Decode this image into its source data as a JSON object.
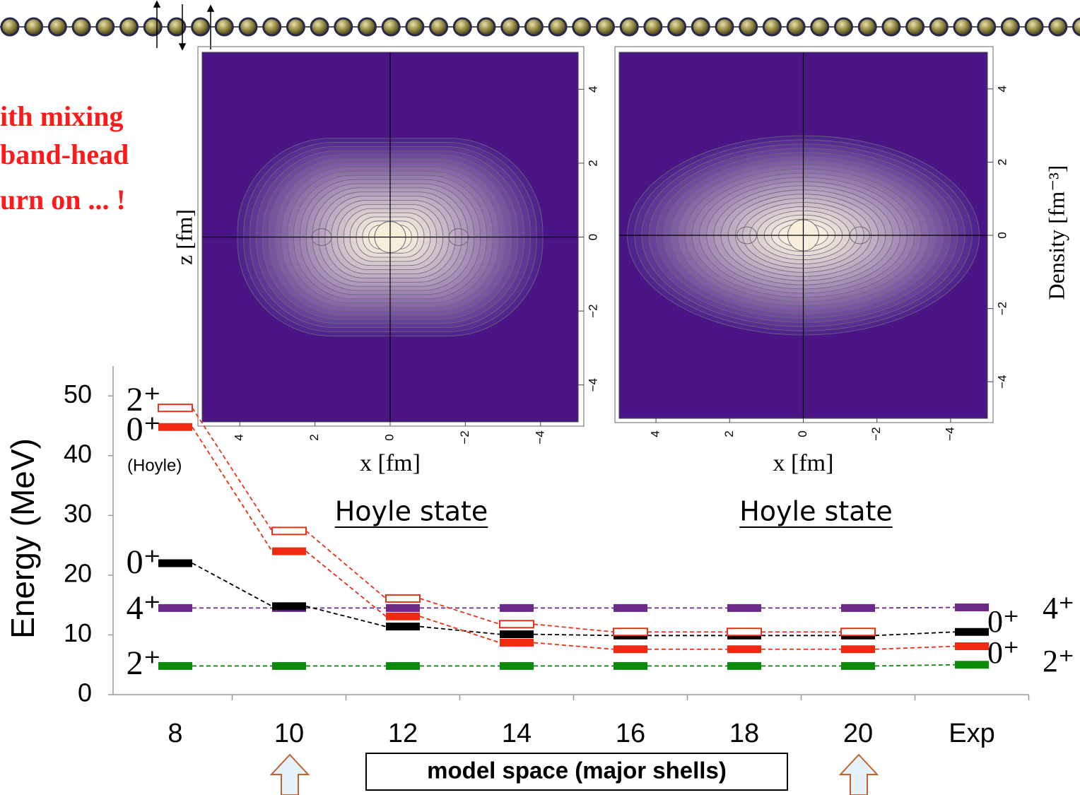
{
  "slide_text": [
    "ith mixing",
    "band-head",
    "urn on ... !"
  ],
  "chart_data": [
    {
      "type": "levels",
      "ylabel": "Energy (MeV)",
      "xlabel": "model space (major shells)",
      "categories": [
        "8",
        "10",
        "12",
        "14",
        "16",
        "18",
        "20",
        "Exp"
      ],
      "ylim": [
        0,
        55
      ],
      "yticks": [
        0,
        10,
        20,
        30,
        40,
        50
      ],
      "series": [
        {
          "name": "2⁺",
          "color": "#0c8a0c",
          "style": "filled",
          "end_label": "2⁺",
          "values": [
            4.8,
            4.8,
            4.8,
            4.8,
            4.8,
            4.8,
            4.8,
            5.0
          ]
        },
        {
          "name": "4⁺",
          "color": "#6b2a85",
          "style": "filled",
          "end_label": "4⁺",
          "values": [
            14.5,
            14.5,
            14.5,
            14.5,
            14.5,
            14.5,
            14.5,
            14.6
          ]
        },
        {
          "name": "0⁺",
          "color": "#000000",
          "style": "filled",
          "end_label": "0⁺",
          "values": [
            22.0,
            14.8,
            11.4,
            10.1,
            9.9,
            9.9,
            9.9,
            10.5
          ]
        },
        {
          "name": "0⁺",
          "color": "#f02a10",
          "style": "filled",
          "end_label": "0⁺",
          "note": "(Hoyle)",
          "values": [
            44.8,
            24.0,
            13.1,
            8.7,
            7.6,
            7.6,
            7.6,
            8.1
          ]
        },
        {
          "name": "2⁺",
          "color": "#e8321a",
          "style": "open",
          "values": [
            48.0,
            27.4,
            16.1,
            11.8,
            10.5,
            10.5,
            10.5,
            null
          ]
        }
      ]
    },
    {
      "type": "contour",
      "shape": "peanut",
      "xlabel": "x [fm]",
      "ylabel": "z [fm]",
      "caption": "Hoyle state",
      "xlim": [
        5,
        -5
      ],
      "ylim": [
        -5,
        5
      ],
      "xticks": [
        4,
        2,
        0,
        {
          "value": -2,
          "label": "−2"
        },
        {
          "value": -4,
          "label": "−4"
        }
      ],
      "yticks": [
        4,
        2,
        0,
        {
          "value": -2,
          "label": "−2"
        },
        {
          "value": -4,
          "label": "−4"
        }
      ]
    },
    {
      "type": "contour",
      "shape": "ellipse",
      "xlabel": "x [fm]",
      "caption": "Hoyle state",
      "colorbar_label": "Density [fm⁻³]",
      "xlim": [
        5,
        -5
      ],
      "ylim": [
        -5,
        5
      ],
      "xticks": [
        4,
        2,
        0,
        {
          "value": -2,
          "label": "−2"
        },
        {
          "value": -4,
          "label": "−4"
        }
      ],
      "yticks": [
        4,
        2,
        0,
        {
          "value": -2,
          "label": "−2"
        },
        {
          "value": -4,
          "label": "−4"
        }
      ]
    }
  ]
}
